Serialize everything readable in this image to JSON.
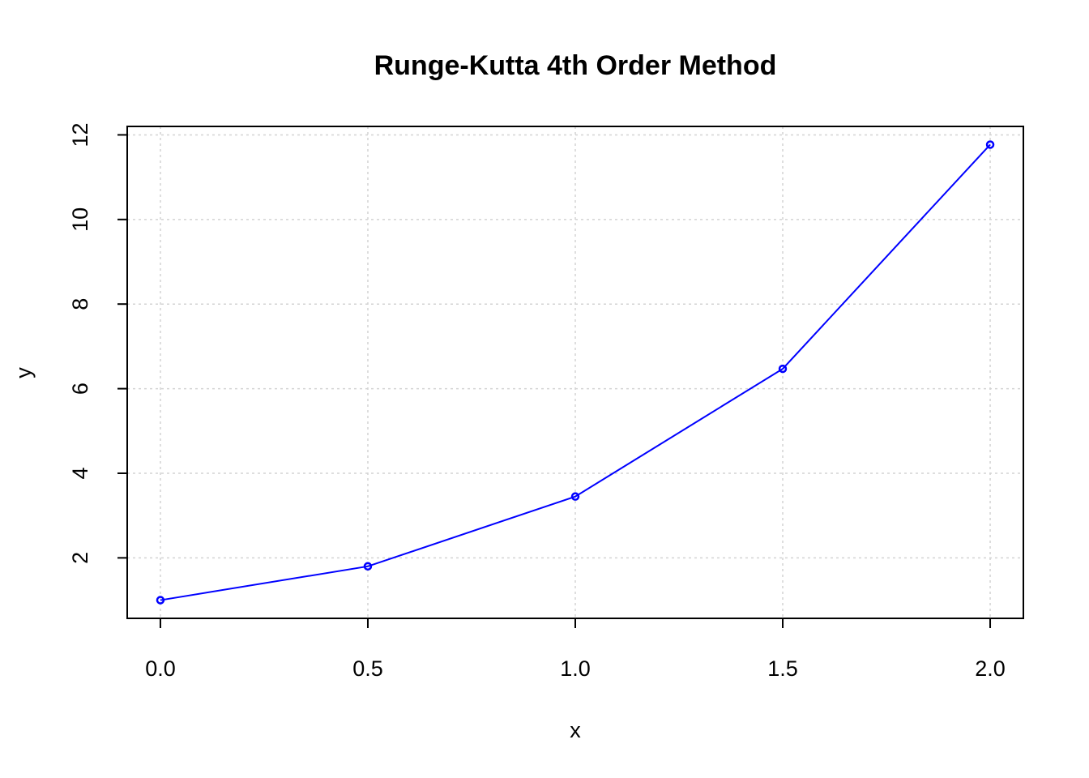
{
  "chart_data": {
    "type": "line",
    "title": "Runge-Kutta 4th Order Method",
    "xlabel": "x",
    "ylabel": "y",
    "x": [
      0.0,
      0.5,
      1.0,
      1.5,
      2.0
    ],
    "series": [
      {
        "values": [
          1.0,
          1.8,
          3.45,
          6.47,
          11.77
        ],
        "color": "#0000ff"
      }
    ],
    "xticks": [
      0.0,
      0.5,
      1.0,
      1.5,
      2.0
    ],
    "xtick_labels": [
      "0.0",
      "0.5",
      "1.0",
      "1.5",
      "2.0"
    ],
    "yticks": [
      2,
      4,
      6,
      8,
      10,
      12
    ],
    "ytick_labels": [
      "2",
      "4",
      "6",
      "8",
      "10",
      "12"
    ],
    "xlim": [
      -0.08,
      2.08
    ],
    "ylim": [
      0.57,
      12.2
    ],
    "grid": true,
    "grid_color": "#d3d3d3",
    "marker": "open-circle"
  }
}
